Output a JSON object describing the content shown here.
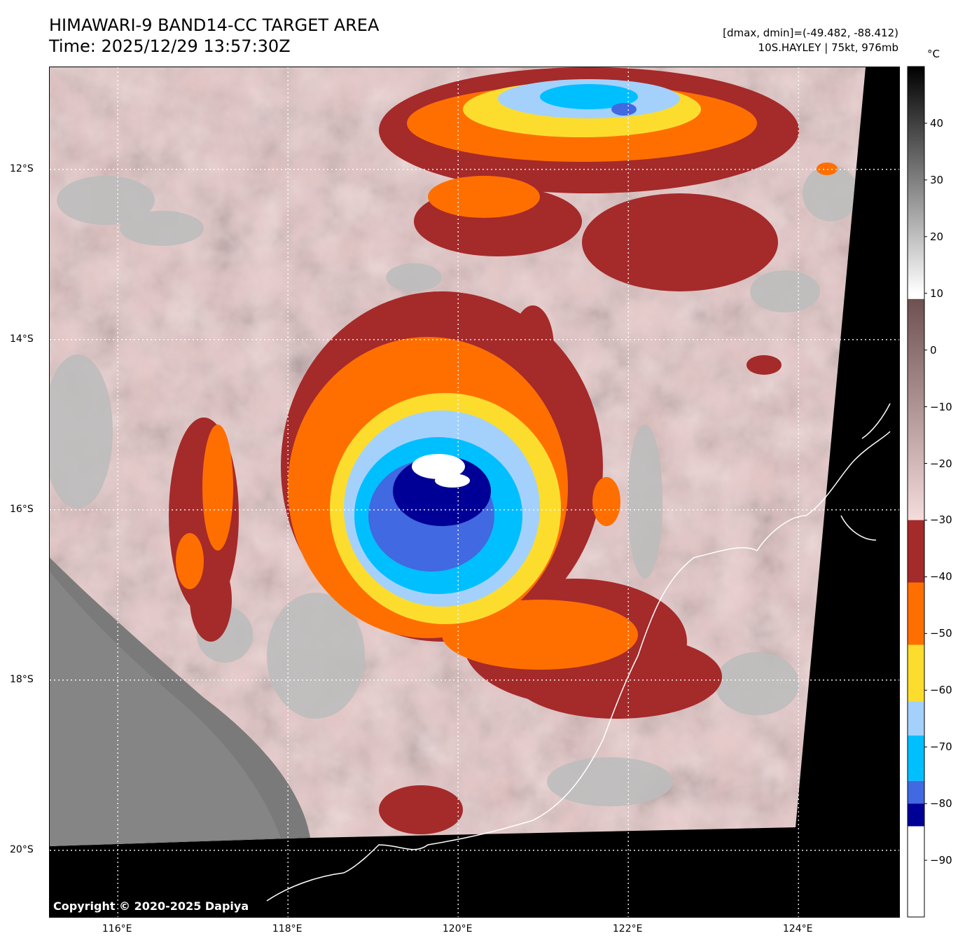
{
  "header": {
    "title_line1": "HIMAWARI-9 BAND14-CC TARGET AREA",
    "title_line2": "Time: 2025/12/29 13:57:30Z",
    "stats_line": "[dmax, dmin]=(-49.482, -88.412)",
    "storm_line": "10S.HAYLEY | 75kt, 976mb"
  },
  "map": {
    "lon_range": [
      115.2,
      125.2
    ],
    "lat_range": [
      -20.8,
      -10.8
    ],
    "lat_ticks": [
      {
        "value": -12,
        "label": "12°S"
      },
      {
        "value": -14,
        "label": "14°S"
      },
      {
        "value": -16,
        "label": "16°S"
      },
      {
        "value": -18,
        "label": "18°S"
      },
      {
        "value": -20,
        "label": "20°S"
      }
    ],
    "lon_ticks": [
      {
        "value": 116,
        "label": "116°E"
      },
      {
        "value": 118,
        "label": "118°E"
      },
      {
        "value": 120,
        "label": "120°E"
      },
      {
        "value": 122,
        "label": "122°E"
      },
      {
        "value": 124,
        "label": "124°E"
      }
    ],
    "grid": "dotted",
    "storm_center": {
      "lon": 120.0,
      "lat": -15.9
    },
    "copyright": "Copyright © 2020-2025 Dapiya"
  },
  "colorbar": {
    "unit": "°C",
    "range": [
      -100,
      50
    ],
    "tick_labels": [
      "40",
      "30",
      "20",
      "10",
      "0",
      "−10",
      "−20",
      "−30",
      "−40",
      "−50",
      "−60",
      "−70",
      "−80",
      "−90"
    ],
    "tick_values": [
      40,
      30,
      20,
      10,
      0,
      -10,
      -20,
      -30,
      -40,
      -50,
      -60,
      -70,
      -80,
      -90
    ],
    "segments": [
      {
        "from": 10,
        "to": 50,
        "kind": "gray",
        "color_top": "#000000",
        "color_bottom": "#ffffff"
      },
      {
        "from": -30,
        "to": 9,
        "kind": "brown",
        "color_top": "#6e5050",
        "color_bottom": "#f5dcdc"
      },
      {
        "from": -41,
        "to": -30,
        "kind": "solid",
        "color": "#a52a2a"
      },
      {
        "from": -52,
        "to": -41,
        "kind": "solid",
        "color": "#ff6f00"
      },
      {
        "from": -62,
        "to": -52,
        "kind": "solid",
        "color": "#fcdd2e"
      },
      {
        "from": -68,
        "to": -62,
        "kind": "solid",
        "color": "#a4d1fc"
      },
      {
        "from": -76,
        "to": -68,
        "kind": "solid",
        "color": "#00bfff"
      },
      {
        "from": -80,
        "to": -76,
        "kind": "solid",
        "color": "#4169e1"
      },
      {
        "from": -84,
        "to": -80,
        "kind": "solid",
        "color": "#000096"
      },
      {
        "from": -100,
        "to": -84,
        "kind": "solid",
        "color": "#ffffff"
      }
    ]
  },
  "colors": {
    "background": "#ffffff",
    "space_black": "#000000",
    "coast": "#ffffff"
  }
}
